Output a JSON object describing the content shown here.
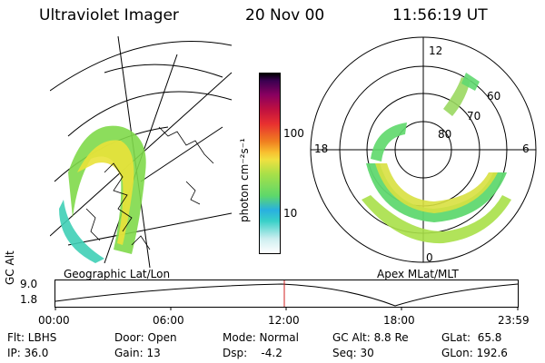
{
  "header": {
    "title": "Ultraviolet Imager",
    "date": "20 Nov 00",
    "time": "11:56:19 UT"
  },
  "panels": {
    "geo_label": "Geographic Lat/Lon",
    "apex_label": "Apex MLat/MLT"
  },
  "colorbar": {
    "label": "photon cm⁻²s⁻¹",
    "ticks": [
      "100",
      "10"
    ],
    "scale": "log"
  },
  "polar": {
    "mlt_labels": [
      "12",
      "18",
      "6",
      "0"
    ],
    "lat_labels": [
      "60",
      "70",
      "80"
    ]
  },
  "timeline": {
    "axis_label": "GC Alt",
    "y_ticks": [
      "9.0",
      "1.8"
    ],
    "x_ticks": [
      "00:00",
      "06:00",
      "12:00",
      "18:00",
      "23:59"
    ],
    "current_time_marker": "11:56:19"
  },
  "status": {
    "flt": "Flt: LBHS",
    "ip": "IP: 36.0",
    "door": "Door: Open",
    "gain": "Gain: 13",
    "mode": "Mode: Normal",
    "dsp": "Dsp:    -4.2",
    "gcalt": "GC Alt: 8.8 Re",
    "seq": "Seq: 30",
    "glat": "GLat:  65.8",
    "glon": "GLon: 192.6"
  }
}
